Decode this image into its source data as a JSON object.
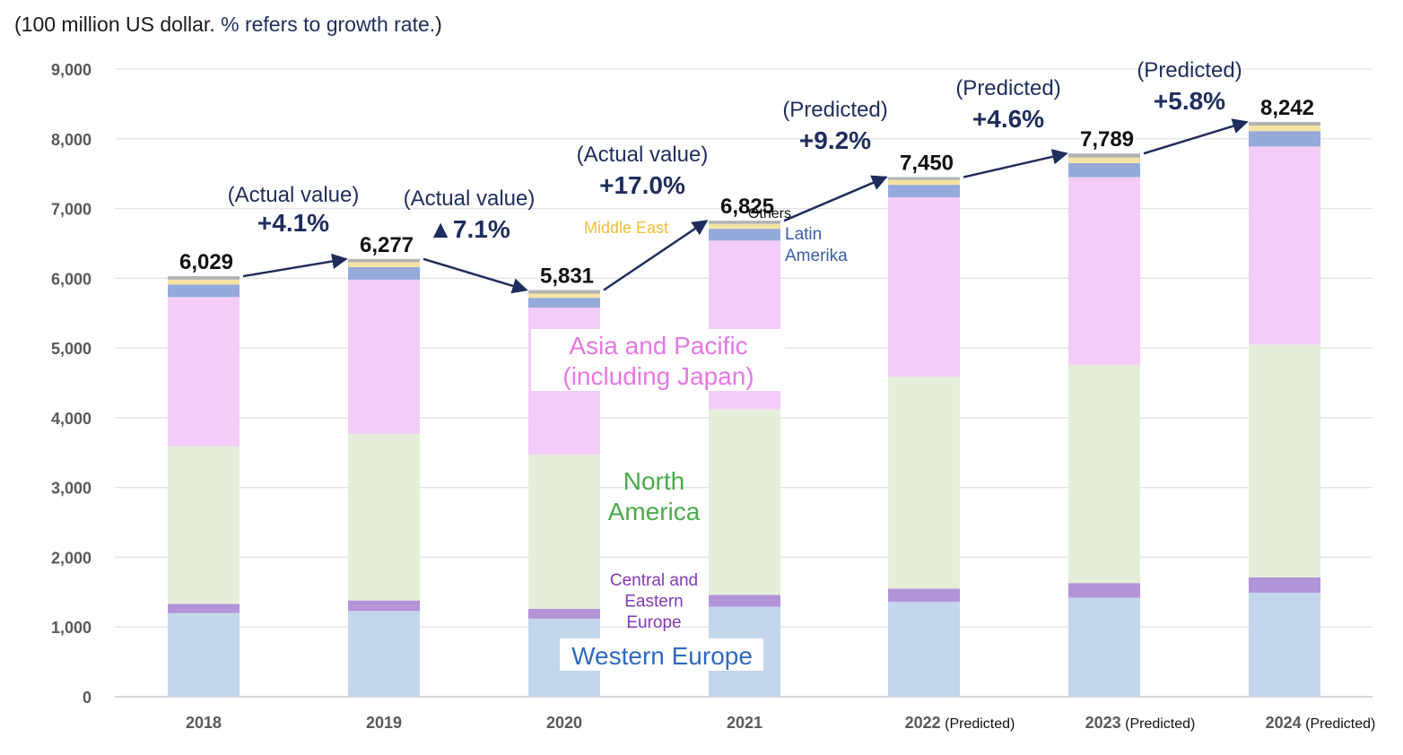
{
  "unit_note": {
    "part1": "(100 million US dollar. ",
    "part2": "% refers to growth rate.",
    "part3": ")"
  },
  "colors": {
    "western_europe": "#c4d6ec",
    "central_eastern_europe": "#b394d9",
    "north_america": "#e5eedb",
    "asia_pacific": "#f3cdf8",
    "latin_america": "#94aadb",
    "middle_east": "#f7e3a3",
    "others": "#b3b3b3",
    "arrow": "#1f2d5c",
    "gridline": "#e3e3e3",
    "axis_text": "#595959"
  },
  "chart_data": {
    "type": "bar",
    "stacked": true,
    "categories": [
      "2018",
      "2019",
      "2020",
      "2021",
      "2022",
      "2023",
      "2024"
    ],
    "category_suffixes": [
      "",
      "",
      "",
      "",
      "(Predicted)",
      "(Predicted)",
      "(Predicted)"
    ],
    "ylim": [
      0,
      9000
    ],
    "yticks": [
      0,
      1000,
      2000,
      3000,
      4000,
      5000,
      6000,
      7000,
      8000,
      9000
    ],
    "ytick_labels": [
      "0",
      "1,000",
      "2,000",
      "3,000",
      "4,000",
      "5,000",
      "6,000",
      "7,000",
      "8,000",
      "9,000"
    ],
    "grid": true,
    "series": [
      {
        "key": "western_europe",
        "name": "Western Europe",
        "values": [
          1200,
          1230,
          1120,
          1290,
          1360,
          1420,
          1490
        ]
      },
      {
        "key": "central_eastern_europe",
        "name": "Central and Eastern Europe",
        "values": [
          130,
          150,
          140,
          170,
          190,
          210,
          220
        ]
      },
      {
        "key": "north_america",
        "name": "North America",
        "values": [
          2260,
          2390,
          2210,
          2660,
          3040,
          3130,
          3340
        ]
      },
      {
        "key": "asia_pacific",
        "name": "Asia and Pacific (including Japan)",
        "values": [
          2140,
          2210,
          2110,
          2420,
          2570,
          2690,
          2840
        ]
      },
      {
        "key": "latin_america",
        "name": "Latin Amerika",
        "values": [
          180,
          180,
          140,
          170,
          180,
          200,
          220
        ]
      },
      {
        "key": "middle_east",
        "name": "Middle East",
        "values": [
          70,
          70,
          60,
          70,
          70,
          80,
          80
        ]
      },
      {
        "key": "others",
        "name": "Others",
        "values": [
          49,
          47,
          51,
          45,
          40,
          59,
          52
        ]
      }
    ],
    "totals": [
      6029,
      6277,
      5831,
      6825,
      7450,
      7789,
      8242
    ],
    "total_labels": [
      "6,029",
      "6,277",
      "5,831",
      "6,825",
      "7,450",
      "7,789",
      "8,242"
    ],
    "growth_annotations": [
      {
        "status": "(Actual value)",
        "rate": "+4.1%"
      },
      {
        "status": "(Actual value)",
        "rate": "▲7.1%"
      },
      {
        "status": "(Actual value)",
        "rate": "+17.0%"
      },
      {
        "status": "(Predicted)",
        "rate": "+9.2%"
      },
      {
        "status": "(Predicted)",
        "rate": "+4.6%"
      },
      {
        "status": "(Predicted)",
        "rate": "+5.8%"
      }
    ],
    "region_labels": {
      "western_europe": "Western Europe",
      "central_eastern_europe": [
        "Central and",
        "Eastern",
        "Europe"
      ],
      "north_america": [
        "North",
        "America"
      ],
      "asia_pacific": [
        "Asia and Pacific",
        "(including Japan)"
      ],
      "latin_america": [
        "Latin",
        "Amerika"
      ],
      "middle_east": "Middle East",
      "others": "Others"
    }
  }
}
